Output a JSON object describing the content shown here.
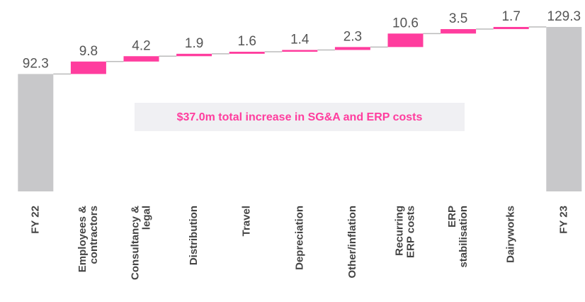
{
  "chart_data": {
    "type": "waterfall",
    "categories": [
      [
        "FY 22"
      ],
      [
        "Employees &",
        "contractors"
      ],
      [
        "Consultancy &",
        "legal"
      ],
      [
        "Distribution"
      ],
      [
        "Travel"
      ],
      [
        "Depreciation"
      ],
      [
        "Other/inflation"
      ],
      [
        "Recurring",
        "ERP costs"
      ],
      [
        "ERP",
        "stabilisation"
      ],
      [
        "Dairyworks"
      ],
      [
        "FY 23"
      ]
    ],
    "values": [
      92.3,
      9.8,
      4.2,
      1.9,
      1.6,
      1.4,
      2.3,
      10.6,
      3.5,
      1.7,
      129.3
    ],
    "totals": [
      true,
      false,
      false,
      false,
      false,
      false,
      false,
      false,
      false,
      false,
      true
    ],
    "total_color": "#c8c8ca",
    "increase_color": "#ff3d9e",
    "annotation": "$37.0m total increase in SG&A and ERP costs"
  }
}
